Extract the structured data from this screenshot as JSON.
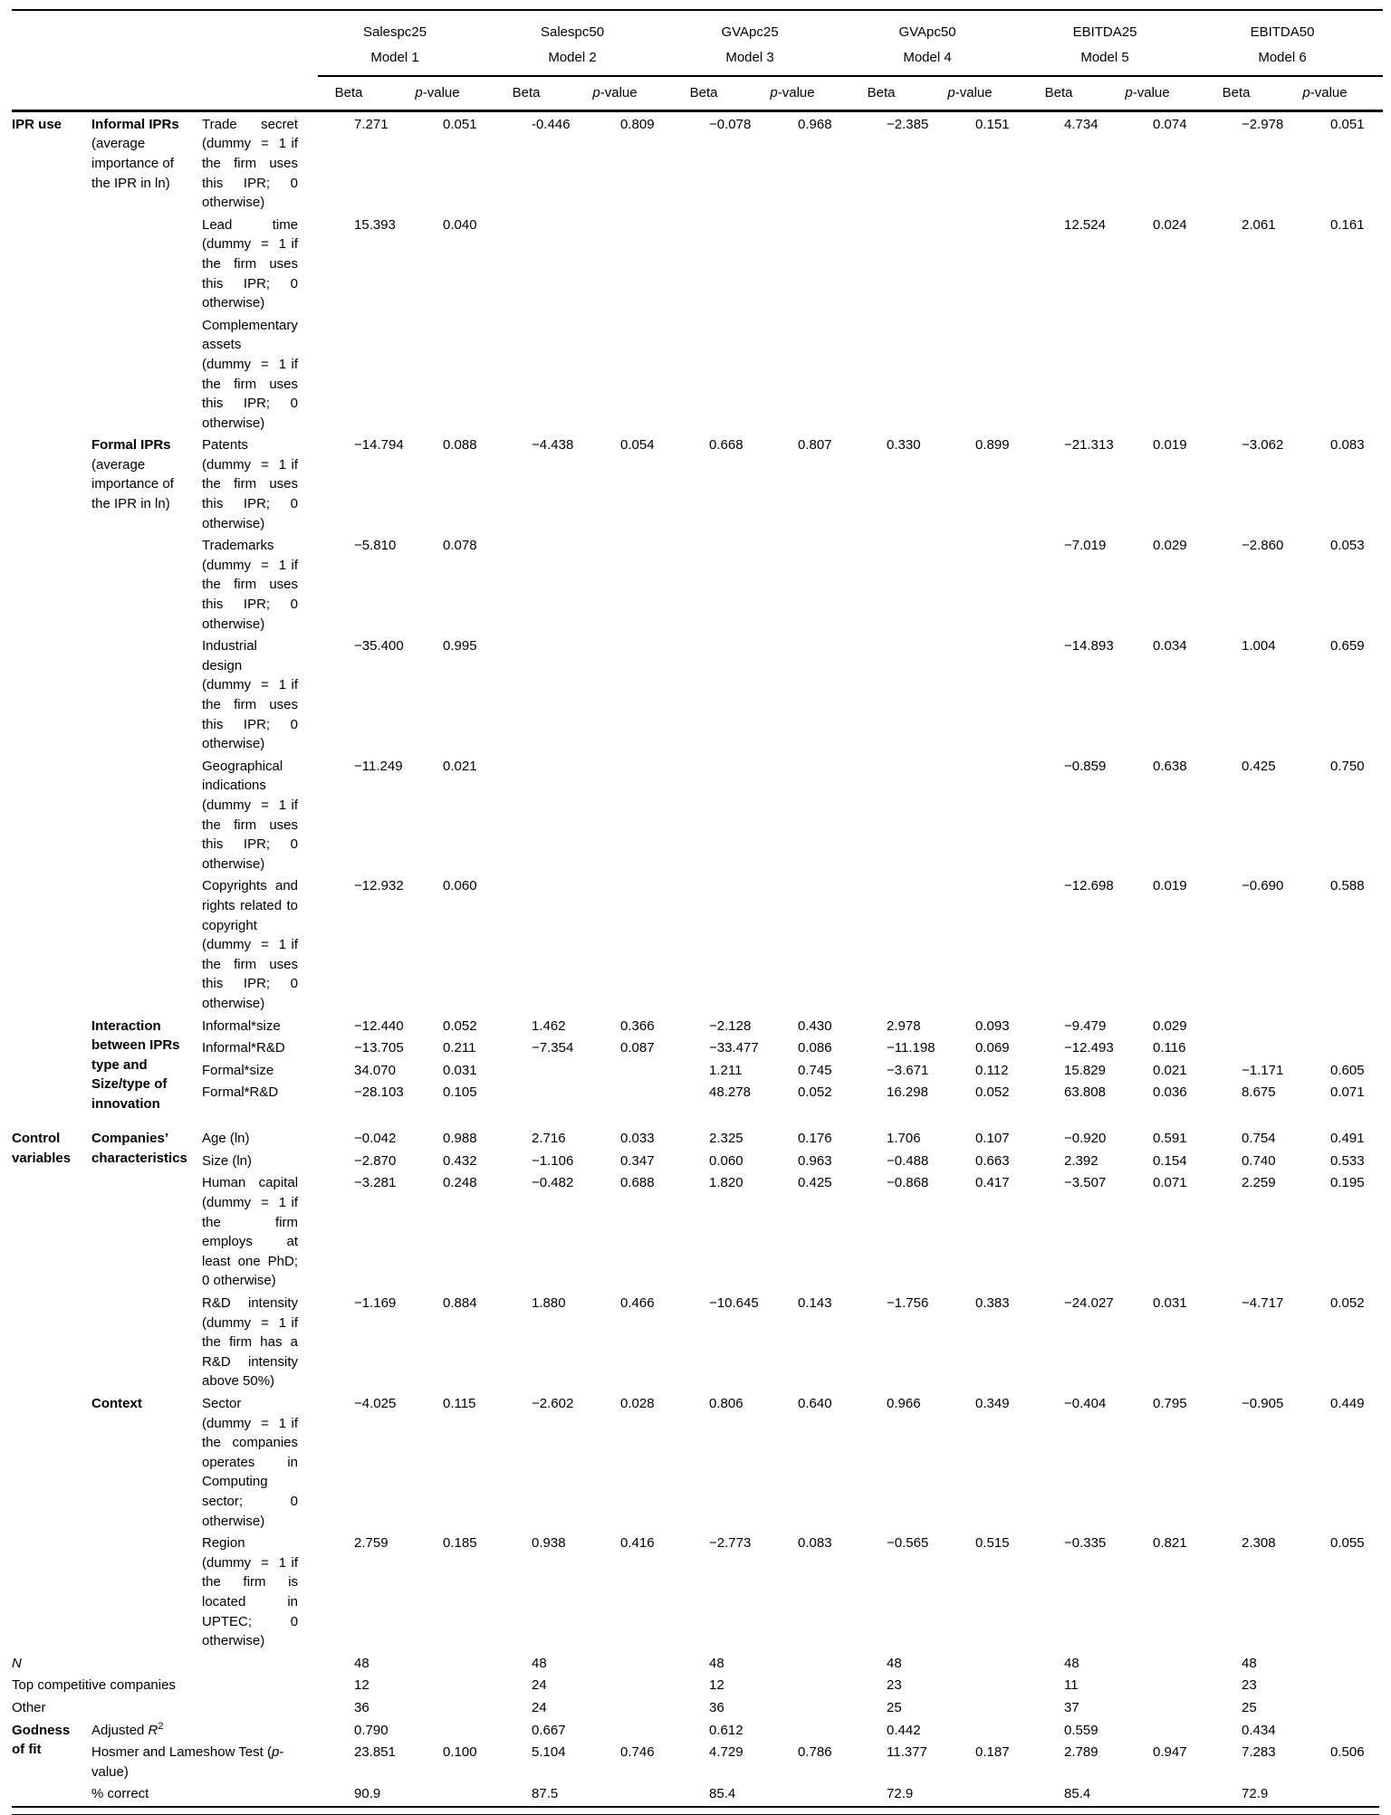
{
  "table": {
    "models": [
      {
        "name": "Salespc25",
        "model": "Model 1"
      },
      {
        "name": "Salespc50",
        "model": "Model 2"
      },
      {
        "name": "GVApc25",
        "model": "Model 3"
      },
      {
        "name": "GVApc50",
        "model": "Model 4"
      },
      {
        "name": "EBITDA25",
        "model": "Model 5"
      },
      {
        "name": "EBITDA50",
        "model": "Model 6"
      }
    ],
    "headers": {
      "beta": "Beta",
      "p_italic": "p",
      "p_rest": "-value"
    },
    "gof_label": "Godness of fit",
    "rows": [
      {
        "sec": {
          "label": "IPR use",
          "span": 12
        },
        "sub": {
          "bold": "Informal IPRs",
          "rest": "(average importance of the IPR in ln)",
          "span": 3
        },
        "label": "Trade secret (dummy  =  1 if the firm uses this IPR; 0 otherwise)",
        "values": [
          "7.271",
          "0.051",
          "-0.446",
          "0.809",
          "−0.078",
          "0.968",
          "−2.385",
          "0.151",
          "4.734",
          "0.074",
          "−2.978",
          "0.051"
        ]
      },
      {
        "label": "Lead time (dummy  =  1 if the firm uses this IPR; 0 otherwise)",
        "values": [
          "15.393",
          "0.040",
          "",
          "",
          "",
          "",
          "",
          "",
          "12.524",
          "0.024",
          "2.061",
          "0.161"
        ]
      },
      {
        "label": "Complementary assets (dummy  =  1 if the firm uses this IPR; 0 otherwise)",
        "values": [
          "",
          "",
          "",
          "",
          "",
          "",
          "",
          "",
          "",
          "",
          "",
          ""
        ]
      },
      {
        "sub": {
          "bold": "Formal IPRs",
          "rest": "(average importance of the IPR in ln)",
          "span": 5
        },
        "label": "Patents (dummy  =  1 if the firm uses this IPR; 0 otherwise)",
        "values": [
          "−14.794",
          "0.088",
          "−4.438",
          "0.054",
          "0.668",
          "0.807",
          "0.330",
          "0.899",
          "−21.313",
          "0.019",
          "−3.062",
          "0.083"
        ]
      },
      {
        "label": "Trademarks (dummy  =  1 if the firm uses this IPR; 0 otherwise)",
        "values": [
          "−5.810",
          "0.078",
          "",
          "",
          "",
          "",
          "",
          "",
          "−7.019",
          "0.029",
          "−2.860",
          "0.053"
        ]
      },
      {
        "label": "Industrial design (dummy  =  1 if the firm uses this IPR; 0 otherwise)",
        "values": [
          "−35.400",
          "0.995",
          "",
          "",
          "",
          "",
          "",
          "",
          "−14.893",
          "0.034",
          "1.004",
          "0.659"
        ]
      },
      {
        "label": "Geographical indications (dummy  =  1 if the firm uses this IPR; 0 otherwise)",
        "values": [
          "−11.249",
          "0.021",
          "",
          "",
          "",
          "",
          "",
          "",
          "−0.859",
          "0.638",
          "0.425",
          "0.750"
        ]
      },
      {
        "label": "Copyrights and rights related to copyright (dummy  =  1 if the firm uses this IPR; 0 otherwise)",
        "values": [
          "−12.932",
          "0.060",
          "",
          "",
          "",
          "",
          "",
          "",
          "−12.698",
          "0.019",
          "−0.690",
          "0.588"
        ]
      },
      {
        "sub": {
          "bold": "Interaction between IPRs type and Size/type of innovation",
          "rest": "",
          "span": 4
        },
        "label": "Informal*size",
        "values": [
          "−12.440",
          "0.052",
          "1.462",
          "0.366",
          "−2.128",
          "0.430",
          "2.978",
          "0.093",
          "−9.479",
          "0.029",
          "",
          ""
        ]
      },
      {
        "label": "Informal*R&D",
        "values": [
          "−13.705",
          "0.211",
          "−7.354",
          "0.087",
          "−33.477",
          "0.086",
          "−11.198",
          "0.069",
          "−12.493",
          "0.116",
          "",
          ""
        ]
      },
      {
        "label": "Formal*size",
        "values": [
          "34.070",
          "0.031",
          "",
          "",
          "1.211",
          "0.745",
          "−3.671",
          "0.112",
          "15.829",
          "0.021",
          "−1.171",
          "0.605"
        ]
      },
      {
        "label": "Formal*R&D",
        "tall": true,
        "values": [
          "−28.103",
          "0.105",
          "",
          "",
          "48.278",
          "0.052",
          "16.298",
          "0.052",
          "63.808",
          "0.036",
          "8.675",
          "0.071"
        ]
      },
      {
        "sec": {
          "label": "Control variables",
          "span": 6
        },
        "sub": {
          "bold": "Companies’ characteristics",
          "rest": "",
          "span": 4
        },
        "label": "Age (ln)",
        "values": [
          "−0.042",
          "0.988",
          "2.716",
          "0.033",
          "2.325",
          "0.176",
          "1.706",
          "0.107",
          "−0.920",
          "0.591",
          "0.754",
          "0.491"
        ]
      },
      {
        "label": "Size (ln)",
        "values": [
          "−2.870",
          "0.432",
          "−1.106",
          "0.347",
          "0.060",
          "0.963",
          "−0.488",
          "0.663",
          "2.392",
          "0.154",
          "0.740",
          "0.533"
        ]
      },
      {
        "label": "Human capital (dummy  =  1 if the firm employs at least one PhD; 0 otherwise)",
        "values": [
          "−3.281",
          "0.248",
          "−0.482",
          "0.688",
          "1.820",
          "0.425",
          "−0.868",
          "0.417",
          "−3.507",
          "0.071",
          "2.259",
          "0.195"
        ]
      },
      {
        "label": "R&D intensity (dummy  =  1 if the firm has a R&D intensity above 50%)",
        "values": [
          "−1.169",
          "0.884",
          "1.880",
          "0.466",
          "−10.645",
          "0.143",
          "−1.756",
          "0.383",
          "−24.027",
          "0.031",
          "−4.717",
          "0.052"
        ]
      },
      {
        "sub": {
          "bold": "Context",
          "rest": "",
          "span": 2
        },
        "label": "Sector (dummy  =  1 if the companies operates in Computing sector; 0 otherwise)",
        "values": [
          "−4.025",
          "0.115",
          "−2.602",
          "0.028",
          "0.806",
          "0.640",
          "0.966",
          "0.349",
          "−0.404",
          "0.795",
          "−0.905",
          "0.449"
        ]
      },
      {
        "label": "Region (dummy  =  1 if the firm is located in UPTEC; 0 otherwise)",
        "values": [
          "2.759",
          "0.185",
          "0.938",
          "0.416",
          "−2.773",
          "0.083",
          "−0.565",
          "0.515",
          "−0.335",
          "0.821",
          "2.308",
          "0.055"
        ]
      }
    ],
    "footer_rows": [
      {
        "layout": "span3",
        "label_parts": [
          {
            "t": "N",
            "i": true
          }
        ],
        "values": [
          "48",
          "",
          "48",
          "",
          "48",
          "",
          "48",
          "",
          "48",
          "",
          "48",
          ""
        ]
      },
      {
        "layout": "span3",
        "label_parts": [
          {
            "t": "Top competitive companies"
          }
        ],
        "values": [
          "12",
          "",
          "24",
          "",
          "12",
          "",
          "23",
          "",
          "11",
          "",
          "23",
          ""
        ]
      },
      {
        "layout": "span3",
        "label_parts": [
          {
            "t": "Other"
          }
        ],
        "values": [
          "36",
          "",
          "24",
          "",
          "36",
          "",
          "25",
          "",
          "37",
          "",
          "25",
          ""
        ]
      },
      {
        "layout": "gof-first",
        "label_parts": [
          {
            "t": "Adjusted "
          },
          {
            "t": "R",
            "i": true
          },
          {
            "t": "2",
            "sup": true
          }
        ],
        "values": [
          "0.790",
          "",
          "0.667",
          "",
          "0.612",
          "",
          "0.442",
          "",
          "0.559",
          "",
          "0.434",
          ""
        ]
      },
      {
        "layout": "gof",
        "label_parts": [
          {
            "t": "Hosmer and Lameshow Test ("
          },
          {
            "t": "p",
            "i": true
          },
          {
            "t": "-value)"
          }
        ],
        "values": [
          "23.851",
          "0.100",
          "5.104",
          "0.746",
          "4.729",
          "0.786",
          "11.377",
          "0.187",
          "2.789",
          "0.947",
          "7.283",
          "0.506"
        ]
      },
      {
        "layout": "gof",
        "label_parts": [
          {
            "t": "% correct"
          }
        ],
        "values": [
          "90.9",
          "",
          "87.5",
          "",
          "85.4",
          "",
          "72.9",
          "",
          "85.4",
          "",
          "72.9",
          ""
        ]
      }
    ]
  }
}
